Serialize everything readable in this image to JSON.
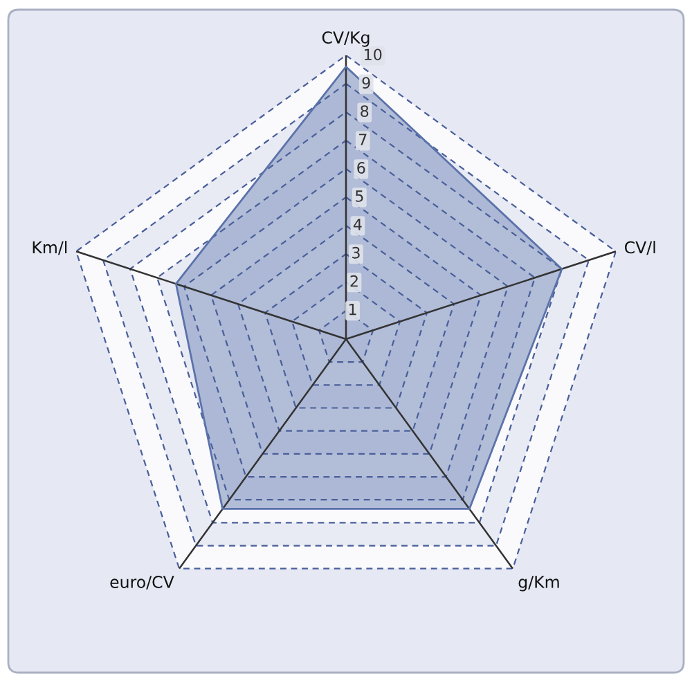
{
  "chart_data": {
    "type": "radar",
    "categories": [
      "CV/Kg",
      "CV/l",
      "g/Km",
      "euro/CV",
      "Km/l"
    ],
    "series": [
      {
        "color": "#8c9cc4",
        "values": [
          9.6,
          8,
          7.4,
          7.4,
          6.3
        ]
      }
    ],
    "ylim": [
      0,
      10
    ],
    "yticks": [
      1,
      2,
      3,
      4,
      5,
      6,
      7,
      8,
      9,
      10
    ],
    "grid": true
  }
}
